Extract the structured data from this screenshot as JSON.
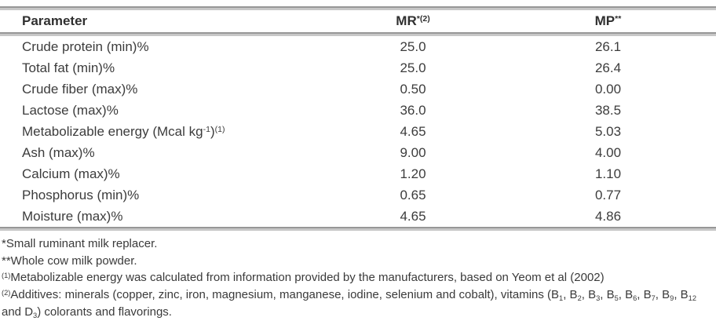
{
  "table": {
    "header": {
      "parameter": "Parameter",
      "mr_segments": [
        {
          "t": "MR",
          "s": "n"
        },
        {
          "t": "*(2)",
          "s": "sup"
        }
      ],
      "mp_segments": [
        {
          "t": "MP",
          "s": "n"
        },
        {
          "t": "**",
          "s": "sup"
        }
      ]
    },
    "rows": [
      {
        "parameter": "Crude protein (min)%",
        "mr": "25.0",
        "mp": "26.1"
      },
      {
        "parameter": "Total fat (min)%",
        "mr": "25.0",
        "mp": "26.4"
      },
      {
        "parameter": "Crude fiber (max)%",
        "mr": "0.50",
        "mp": "0.00"
      },
      {
        "parameter": "Lactose (max)%",
        "mr": "36.0",
        "mp": "38.5"
      },
      {
        "parameter_segments": [
          {
            "t": "Metabolizable energy (Mcal kg",
            "s": "n"
          },
          {
            "t": "-1",
            "s": "sup"
          },
          {
            "t": ")",
            "s": "n"
          },
          {
            "t": "(1)",
            "s": "sup"
          }
        ],
        "mr": "4.65",
        "mp": "5.03"
      },
      {
        "parameter": "Ash (max)%",
        "mr": "9.00",
        "mp": "4.00"
      },
      {
        "parameter": "Calcium (max)%",
        "mr": "1.20",
        "mp": "1.10"
      },
      {
        "parameter": "Phosphorus (min)%",
        "mr": "0.65",
        "mp": "0.77"
      },
      {
        "parameter": "Moisture (max)%",
        "mr": "4.65",
        "mp": "4.86"
      }
    ]
  },
  "footnotes": [
    {
      "segments": [
        {
          "t": "*Small ruminant milk replacer.",
          "s": "n"
        }
      ]
    },
    {
      "segments": [
        {
          "t": "**Whole cow milk powder.",
          "s": "n"
        }
      ]
    },
    {
      "segments": [
        {
          "t": "(1)",
          "s": "sup"
        },
        {
          "t": "Metabolizable energy was calculated from information provided by the manufacturers, based on Yeom et al (2002)",
          "s": "n"
        }
      ]
    },
    {
      "segments": [
        {
          "t": "(2)",
          "s": "sup"
        },
        {
          "t": "Additives: minerals (copper, zinc, iron, magnesium, manganese, iodine, selenium and cobalt), vitamins (B",
          "s": "n"
        },
        {
          "t": "1",
          "s": "sub"
        },
        {
          "t": ", B",
          "s": "n"
        },
        {
          "t": "2",
          "s": "sub"
        },
        {
          "t": ", B",
          "s": "n"
        },
        {
          "t": "3",
          "s": "sub"
        },
        {
          "t": ", B",
          "s": "n"
        },
        {
          "t": "5",
          "s": "sub"
        },
        {
          "t": ", B",
          "s": "n"
        },
        {
          "t": "6",
          "s": "sub"
        },
        {
          "t": ", B",
          "s": "n"
        },
        {
          "t": "7",
          "s": "sub"
        },
        {
          "t": ", B",
          "s": "n"
        },
        {
          "t": "9",
          "s": "sub"
        },
        {
          "t": ", B",
          "s": "n"
        },
        {
          "t": "12",
          "s": "sub"
        },
        {
          "t": " and D",
          "s": "n"
        },
        {
          "t": "3",
          "s": "sub"
        },
        {
          "t": ") colorants and flavorings.",
          "s": "n"
        }
      ]
    }
  ],
  "colors": {
    "rule_dark": "#979797",
    "rule_light": "#c7c7c7",
    "text": "#3a3a3a"
  }
}
